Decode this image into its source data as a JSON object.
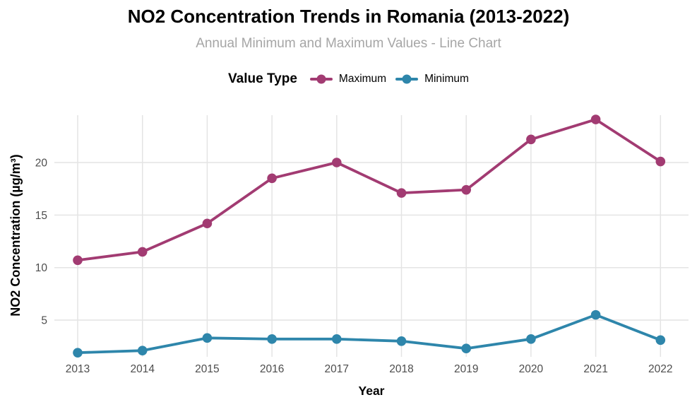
{
  "title": "NO2 Concentration Trends in Romania (2013-2022)",
  "subtitle": "Annual Minimum and Maximum Values - Line Chart",
  "legend": {
    "title": "Value Type",
    "position": "top",
    "items": [
      {
        "label": "Maximum",
        "color": "#A23B72"
      },
      {
        "label": "Minimum",
        "color": "#2E86AB"
      }
    ]
  },
  "colors": {
    "maximum": "#A23B72",
    "minimum": "#2E86AB",
    "gridline": "#E4E4E4",
    "tick_label": "#4D4D4D",
    "subtitle": "#A6A6A6",
    "title": "#000000",
    "axis_title": "#000000",
    "background": "#FFFFFF"
  },
  "chart_data": {
    "type": "line",
    "title": "NO2 Concentration Trends in Romania (2013-2022)",
    "subtitle": "Annual Minimum and Maximum Values - Line Chart",
    "xlabel": "Year",
    "ylabel": "NO2 Concentration (µg/m³)",
    "x": [
      2013,
      2014,
      2015,
      2016,
      2017,
      2018,
      2019,
      2020,
      2021,
      2022
    ],
    "series": [
      {
        "name": "Maximum",
        "color": "#A23B72",
        "values": [
          10.7,
          11.5,
          14.2,
          18.5,
          20.0,
          17.1,
          17.4,
          22.2,
          24.1,
          20.1
        ]
      },
      {
        "name": "Minimum",
        "color": "#2E86AB",
        "values": [
          1.9,
          2.1,
          3.3,
          3.2,
          3.2,
          3.0,
          2.3,
          3.2,
          5.5,
          3.1
        ]
      }
    ],
    "yticks": [
      5,
      10,
      15,
      20
    ],
    "ylim": [
      1.0,
      24.6
    ],
    "grid": true,
    "legend_position": "top",
    "marker": "circle",
    "line_width": 3.8,
    "marker_radius": 6.8
  }
}
